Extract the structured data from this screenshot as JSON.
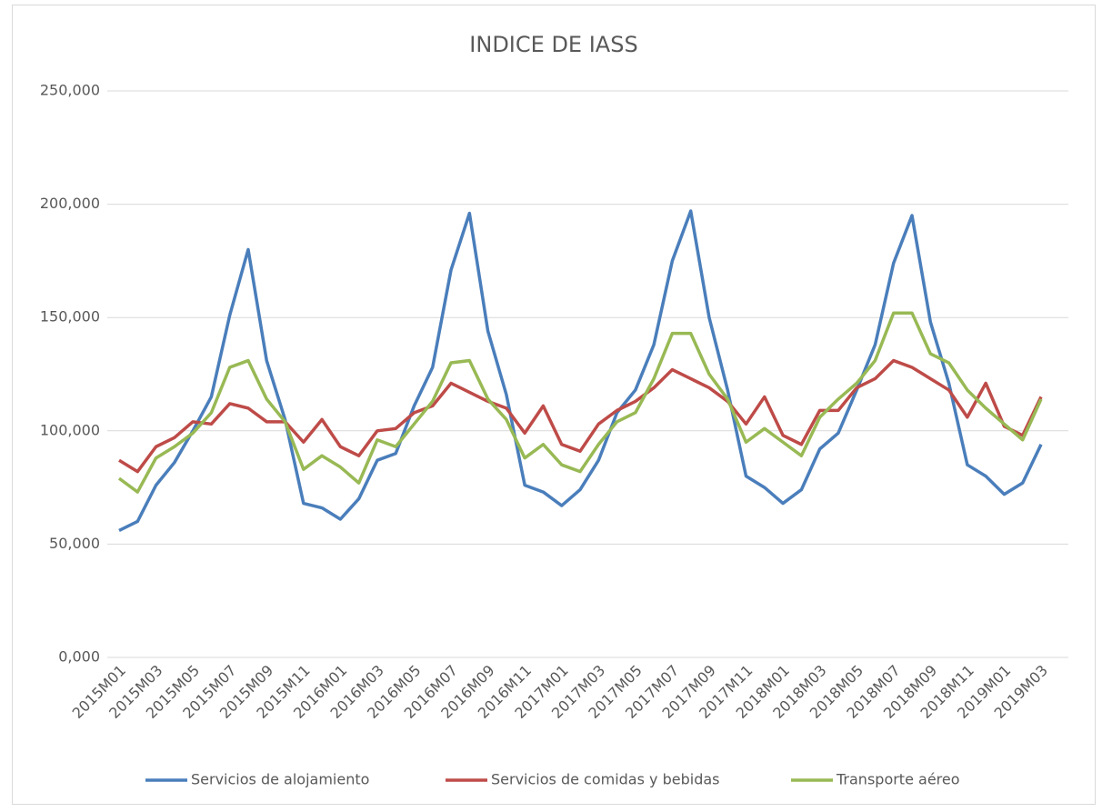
{
  "chart_data": {
    "type": "line",
    "title": "INDICE DE IASS",
    "categories": [
      "2015M01",
      null,
      "2015M03",
      null,
      "2015M05",
      null,
      "2015M07",
      null,
      "2015M09",
      null,
      "2015M11",
      null,
      "2016M01",
      null,
      "2016M03",
      null,
      "2016M05",
      null,
      "2016M07",
      null,
      "2016M09",
      null,
      "2016M11",
      null,
      "2017M01",
      null,
      "2017M03",
      null,
      "2017M05",
      null,
      "2017M07",
      null,
      "2017M09",
      null,
      "2017M11",
      null,
      "2018M01",
      null,
      "2018M03",
      null,
      "2018M05",
      null,
      "2018M07",
      null,
      "2018M09",
      null,
      "2018M11",
      null,
      "2019M01",
      null,
      "2019M03"
    ],
    "series": [
      {
        "name": "Servicios de alojamiento",
        "color": "#4a7ebb",
        "values": [
          56,
          60,
          76,
          86,
          100,
          115,
          151,
          180,
          131,
          105,
          68,
          66,
          61,
          70,
          87,
          90,
          111,
          128,
          171,
          196,
          144,
          116,
          76,
          73,
          67,
          74,
          87,
          108,
          118,
          138,
          175,
          197,
          150,
          118,
          80,
          75,
          68,
          74,
          92,
          99,
          118,
          138,
          174,
          195,
          148,
          121,
          85,
          80,
          72,
          77,
          94
        ]
      },
      {
        "name": "Servicios de comidas y bebidas",
        "color": "#be4b48",
        "values": [
          87,
          82,
          93,
          97,
          104,
          103,
          112,
          110,
          104,
          104,
          95,
          105,
          93,
          89,
          100,
          101,
          108,
          111,
          121,
          117,
          113,
          110,
          99,
          111,
          94,
          91,
          103,
          109,
          113,
          119,
          127,
          123,
          119,
          113,
          103,
          115,
          98,
          94,
          109,
          109,
          119,
          123,
          131,
          128,
          123,
          118,
          106,
          121,
          102,
          98,
          115
        ]
      },
      {
        "name": "Transporte aéreo",
        "color": "#98b954",
        "values": [
          79,
          73,
          88,
          93,
          99,
          108,
          128,
          131,
          114,
          104,
          83,
          89,
          84,
          77,
          96,
          93,
          103,
          113,
          130,
          131,
          114,
          105,
          88,
          94,
          85,
          82,
          94,
          104,
          108,
          123,
          143,
          143,
          125,
          114,
          95,
          101,
          95,
          89,
          106,
          114,
          121,
          131,
          152,
          152,
          134,
          130,
          118,
          110,
          103,
          96,
          114
        ]
      }
    ],
    "ylim": [
      0,
      250
    ],
    "yticks": [
      {
        "value": 0,
        "label": "0,000"
      },
      {
        "value": 50,
        "label": "50,000"
      },
      {
        "value": 100,
        "label": "100,000"
      },
      {
        "value": 150,
        "label": "150,000"
      },
      {
        "value": 200,
        "label": "200,000"
      },
      {
        "value": 250,
        "label": "250,000"
      }
    ],
    "grid": true,
    "legend": "bottom"
  }
}
